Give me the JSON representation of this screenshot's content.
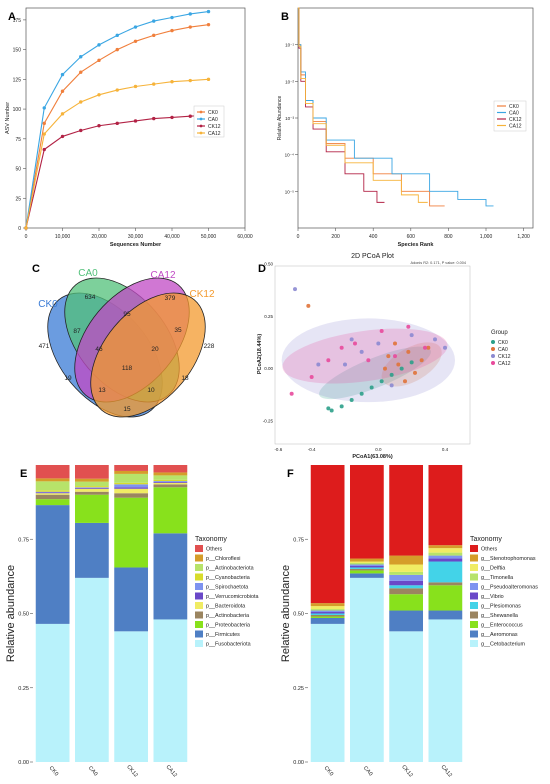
{
  "panels": {
    "A": "A",
    "B": "B",
    "C": "C",
    "D": "D",
    "E": "E",
    "F": "F"
  },
  "colors": {
    "CK0": "#f07f3c",
    "CA0": "#3aa6e3",
    "CK12": "#b22245",
    "CA12": "#f6b33a"
  },
  "chart_data": [
    {
      "id": "A",
      "type": "line",
      "xlabel": "Sequences Number",
      "ylabel": "ASV Number",
      "xlim": [
        0,
        60000
      ],
      "ylim": [
        0,
        185
      ],
      "xticks": [
        0,
        10000,
        20000,
        30000,
        40000,
        50000,
        60000
      ],
      "xtick_labels": [
        "0",
        "10,000",
        "20,000",
        "30,000",
        "40,000",
        "50,000",
        "60,000"
      ],
      "yticks": [
        0,
        25,
        50,
        75,
        100,
        125,
        150,
        175
      ],
      "x": [
        0,
        5000,
        10000,
        15000,
        20000,
        25000,
        30000,
        35000,
        40000,
        45000,
        50000
      ],
      "legend_position": "right",
      "series": [
        {
          "name": "CK0",
          "values": [
            0,
            88,
            115,
            131,
            141,
            150,
            157,
            162,
            166,
            169,
            171
          ]
        },
        {
          "name": "CA0",
          "values": [
            0,
            101,
            129,
            144,
            154,
            162,
            169,
            174,
            177,
            180,
            182
          ]
        },
        {
          "name": "CK12",
          "values": [
            0,
            66,
            77,
            82,
            86,
            88,
            90,
            92,
            93,
            94,
            95
          ]
        },
        {
          "name": "CA12",
          "values": [
            0,
            79,
            96,
            106,
            112,
            116,
            119,
            121,
            123,
            124,
            125
          ]
        }
      ]
    },
    {
      "id": "B",
      "type": "line",
      "xlabel": "Species Rank",
      "ylabel": "Relative Abundance",
      "yscale": "log",
      "xlim": [
        0,
        1250
      ],
      "xticks": [
        0,
        200,
        400,
        600,
        800,
        1000,
        1200
      ],
      "xtick_labels": [
        "0",
        "200",
        "400",
        "600",
        "800",
        "1,000",
        "1,200"
      ],
      "yticks": [
        0.1,
        0.01,
        0.001,
        0.0001,
        1e-05
      ],
      "ytick_labels": [
        "10⁻¹",
        "10⁻²",
        "10⁻³",
        "10⁻⁴",
        "10⁻⁵"
      ],
      "ylim": [
        1e-06,
        1
      ],
      "legend_position": "right",
      "series": [
        {
          "name": "CK0",
          "points": [
            [
              0,
              1
            ],
            [
              5,
              0.1
            ],
            [
              15,
              0.015
            ],
            [
              40,
              0.003
            ],
            [
              80,
              0.0008
            ],
            [
              150,
              0.0002
            ],
            [
              250,
              8e-05
            ],
            [
              400,
              3e-05
            ],
            [
              550,
              1e-05
            ],
            [
              700,
              4e-06
            ],
            [
              780,
              4e-06
            ]
          ]
        },
        {
          "name": "CA0",
          "points": [
            [
              0,
              1
            ],
            [
              5,
              0.1
            ],
            [
              15,
              0.018
            ],
            [
              40,
              0.003
            ],
            [
              80,
              0.001
            ],
            [
              150,
              0.00025
            ],
            [
              300,
              8e-05
            ],
            [
              500,
              3e-05
            ],
            [
              700,
              1e-05
            ],
            [
              850,
              6e-06
            ],
            [
              1000,
              4e-06
            ],
            [
              1040,
              4e-06
            ]
          ]
        },
        {
          "name": "CK12",
          "points": [
            [
              0,
              1
            ],
            [
              5,
              0.08
            ],
            [
              15,
              0.01
            ],
            [
              40,
              0.002
            ],
            [
              80,
              0.0005
            ],
            [
              150,
              0.00012
            ],
            [
              250,
              3e-05
            ],
            [
              350,
              1e-05
            ],
            [
              420,
              5e-06
            ],
            [
              460,
              5e-06
            ]
          ]
        },
        {
          "name": "CA12",
          "points": [
            [
              0,
              1
            ],
            [
              5,
              0.09
            ],
            [
              15,
              0.012
            ],
            [
              40,
              0.0025
            ],
            [
              80,
              0.0007
            ],
            [
              150,
              0.00018
            ],
            [
              250,
              6e-05
            ],
            [
              400,
              2e-05
            ],
            [
              550,
              8e-06
            ],
            [
              640,
              5e-06
            ],
            [
              690,
              5e-06
            ]
          ]
        }
      ]
    },
    {
      "id": "C",
      "type": "venn",
      "sets": [
        "CK0",
        "CA0",
        "CA12",
        "CK12"
      ],
      "set_colors": [
        "#3a7bd5",
        "#52c07a",
        "#c04ac4",
        "#f39a2e"
      ],
      "regions": [
        {
          "sets": "CK0",
          "value": 471
        },
        {
          "sets": "CA0",
          "value": 634
        },
        {
          "sets": "CA12",
          "value": 379
        },
        {
          "sets": "CK12",
          "value": 228
        },
        {
          "sets": "CK0&CA0",
          "value": 87
        },
        {
          "sets": "CA0&CA12",
          "value": 95
        },
        {
          "sets": "CA12&CK12",
          "value": 35
        },
        {
          "sets": "CK0&CA0&CA12",
          "value": 46
        },
        {
          "sets": "CA0&CA12&CK12",
          "value": 20
        },
        {
          "sets": "CK0&CA12",
          "value": 19
        },
        {
          "sets": "CA0&CK12",
          "value": 18
        },
        {
          "sets": "all",
          "value": 118
        },
        {
          "sets": "CK0&CA0&CK12",
          "value": 13
        },
        {
          "sets": "CK0&CA12&CK12",
          "value": 10
        },
        {
          "sets": "CK0&CK12",
          "value": 15
        }
      ]
    },
    {
      "id": "D",
      "type": "scatter",
      "title": "2D PCoA Plot",
      "stats": "Adonis R2: 0.171, P value: 0.004",
      "xlabel": "PCoA1(63.08%)",
      "ylabel": "PCoA2(18.44%)",
      "xlim": [
        -0.62,
        0.55
      ],
      "ylim": [
        -0.36,
        0.5
      ],
      "xticks": [
        -0.4,
        0.0,
        0.4
      ],
      "xtick_labels": [
        "-0.4",
        "0.0",
        "0.4"
      ],
      "xticks_minor": [
        -0.6,
        -0.2,
        0.2
      ],
      "xtick_minor_labels": [
        "-0.6",
        "",
        ""
      ],
      "yticks": [
        -0.25,
        0.0,
        0.25,
        0.5
      ],
      "ytick_labels": [
        "-0.25",
        "0.00",
        "0.25",
        "0.50"
      ],
      "legend_title": "Group",
      "legend_position": "right",
      "groups": [
        {
          "name": "CK0",
          "color": "#2ca089",
          "points": [
            [
              -0.28,
              -0.2
            ],
            [
              -0.22,
              -0.18
            ],
            [
              -0.16,
              -0.15
            ],
            [
              -0.1,
              -0.12
            ],
            [
              -0.04,
              -0.09
            ],
            [
              0.02,
              -0.06
            ],
            [
              0.08,
              -0.03
            ],
            [
              0.14,
              0.0
            ],
            [
              0.2,
              0.03
            ],
            [
              -0.3,
              -0.19
            ]
          ]
        },
        {
          "name": "CA0",
          "color": "#e0733a",
          "points": [
            [
              -0.42,
              0.3
            ],
            [
              0.06,
              0.06
            ],
            [
              0.12,
              0.02
            ],
            [
              0.18,
              0.08
            ],
            [
              0.22,
              -0.02
            ],
            [
              0.26,
              0.04
            ],
            [
              0.3,
              0.1
            ],
            [
              0.16,
              -0.06
            ],
            [
              0.1,
              0.12
            ],
            [
              0.04,
              0.0
            ]
          ]
        },
        {
          "name": "CK12",
          "color": "#8c8ad1",
          "points": [
            [
              -0.5,
              0.38
            ],
            [
              -0.16,
              0.14
            ],
            [
              -0.1,
              0.08
            ],
            [
              0.0,
              0.12
            ],
            [
              0.2,
              0.16
            ],
            [
              0.34,
              0.14
            ],
            [
              0.4,
              0.1
            ],
            [
              -0.36,
              0.02
            ],
            [
              -0.2,
              0.02
            ],
            [
              0.08,
              -0.08
            ]
          ]
        },
        {
          "name": "CA12",
          "color": "#e84a9c",
          "points": [
            [
              -0.52,
              -0.12
            ],
            [
              -0.4,
              -0.04
            ],
            [
              -0.3,
              0.04
            ],
            [
              -0.22,
              0.1
            ],
            [
              -0.14,
              0.12
            ],
            [
              -0.06,
              0.04
            ],
            [
              0.02,
              0.18
            ],
            [
              0.1,
              0.06
            ],
            [
              0.18,
              0.2
            ],
            [
              0.28,
              0.1
            ]
          ]
        }
      ]
    },
    {
      "id": "E",
      "type": "bar",
      "stacked": true,
      "ylabel": "Relative abundance",
      "ylim": [
        0,
        1
      ],
      "yticks": [
        0.0,
        0.25,
        0.5,
        0.75
      ],
      "ytick_labels": [
        "0.00",
        "0.25",
        "0.50",
        "0.75"
      ],
      "categories": [
        "CK0",
        "CA0",
        "CK12",
        "CA12"
      ],
      "legend_title": "Taxonomy",
      "legend_position": "right",
      "series": [
        {
          "name": "p__Fusobacteriota",
          "color": "#b8f2fb",
          "values": [
            0.465,
            0.62,
            0.44,
            0.48
          ]
        },
        {
          "name": "p__Firmicutes",
          "color": "#4f7fc4",
          "values": [
            0.4,
            0.185,
            0.215,
            0.29
          ]
        },
        {
          "name": "p__Proteobacteria",
          "color": "#88e11c",
          "values": [
            0.02,
            0.095,
            0.235,
            0.155
          ]
        },
        {
          "name": "p__Actinobacteria",
          "color": "#9b8560",
          "values": [
            0.015,
            0.01,
            0.015,
            0.01
          ]
        },
        {
          "name": "p__Bacteroidota",
          "color": "#f0ec64",
          "values": [
            0.005,
            0.01,
            0.015,
            0.005
          ]
        },
        {
          "name": "p__Verrucomicrobiota",
          "color": "#6a48c8",
          "values": [
            0.003,
            0.003,
            0.005,
            0.003
          ]
        },
        {
          "name": "p__Spirochaetota",
          "color": "#7e93f0",
          "values": [
            0.002,
            0.002,
            0.01,
            0.003
          ]
        },
        {
          "name": "p__Cyanobacteria",
          "color": "#d8dc2c",
          "values": [
            0.005,
            0.004,
            0.005,
            0.004
          ]
        },
        {
          "name": "p__Actinobacteriota",
          "color": "#b7e36a",
          "values": [
            0.03,
            0.015,
            0.03,
            0.015
          ]
        },
        {
          "name": "p__Chloroflexi",
          "color": "#d59d2a",
          "values": [
            0.01,
            0.01,
            0.01,
            0.01
          ]
        },
        {
          "name": "Others",
          "color": "#e15050",
          "values": [
            0.045,
            0.046,
            0.02,
            0.025
          ]
        }
      ]
    },
    {
      "id": "F",
      "type": "bar",
      "stacked": true,
      "ylabel": "Relative abundance",
      "ylim": [
        0,
        1
      ],
      "yticks": [
        0.0,
        0.25,
        0.5,
        0.75
      ],
      "ytick_labels": [
        "0.00",
        "0.25",
        "0.50",
        "0.75"
      ],
      "categories": [
        "CK0",
        "CA0",
        "CK12",
        "CA12"
      ],
      "legend_title": "Taxonomy",
      "legend_position": "right",
      "series": [
        {
          "name": "g__Cetobacterium",
          "color": "#b8f2fb",
          "values": [
            0.465,
            0.62,
            0.44,
            0.48
          ]
        },
        {
          "name": "g__Aeromonas",
          "color": "#4f7fc4",
          "values": [
            0.02,
            0.015,
            0.07,
            0.03
          ]
        },
        {
          "name": "g__Enterococcus",
          "color": "#88e11c",
          "values": [
            0.005,
            0.01,
            0.055,
            0.085
          ]
        },
        {
          "name": "g__Shewanella",
          "color": "#9b8560",
          "values": [
            0.005,
            0.005,
            0.02,
            0.01
          ]
        },
        {
          "name": "g__Plesiomonas",
          "color": "#43d3e8",
          "values": [
            0.005,
            0.005,
            0.01,
            0.07
          ]
        },
        {
          "name": "g__Vibrio",
          "color": "#6a48c8",
          "values": [
            0.005,
            0.005,
            0.015,
            0.01
          ]
        },
        {
          "name": "g__Pseudoalteromonas",
          "color": "#7e93f0",
          "values": [
            0.005,
            0.005,
            0.02,
            0.01
          ]
        },
        {
          "name": "g__Timonella",
          "color": "#b7e36a",
          "values": [
            0.005,
            0.005,
            0.01,
            0.01
          ]
        },
        {
          "name": "g__Delftia",
          "color": "#f0ec64",
          "values": [
            0.01,
            0.005,
            0.025,
            0.015
          ]
        },
        {
          "name": "g__Stenotrophomonas",
          "color": "#d59d2a",
          "values": [
            0.01,
            0.01,
            0.03,
            0.01
          ]
        },
        {
          "name": "Others",
          "color": "#dd1c1c",
          "values": [
            0.465,
            0.315,
            0.305,
            0.27
          ]
        }
      ]
    }
  ]
}
